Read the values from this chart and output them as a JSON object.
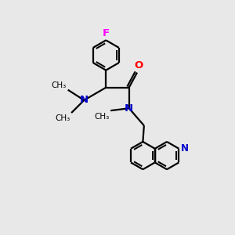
{
  "bg_color": "#e8e8e8",
  "bond_color": "#000000",
  "N_color": "#0000cc",
  "O_color": "#ff0000",
  "F_color": "#ff00ff",
  "line_width": 1.6,
  "font_size": 8.5,
  "fig_size": [
    3.0,
    3.0
  ],
  "dpi": 100,
  "xlim": [
    0,
    10
  ],
  "ylim": [
    0,
    10
  ]
}
